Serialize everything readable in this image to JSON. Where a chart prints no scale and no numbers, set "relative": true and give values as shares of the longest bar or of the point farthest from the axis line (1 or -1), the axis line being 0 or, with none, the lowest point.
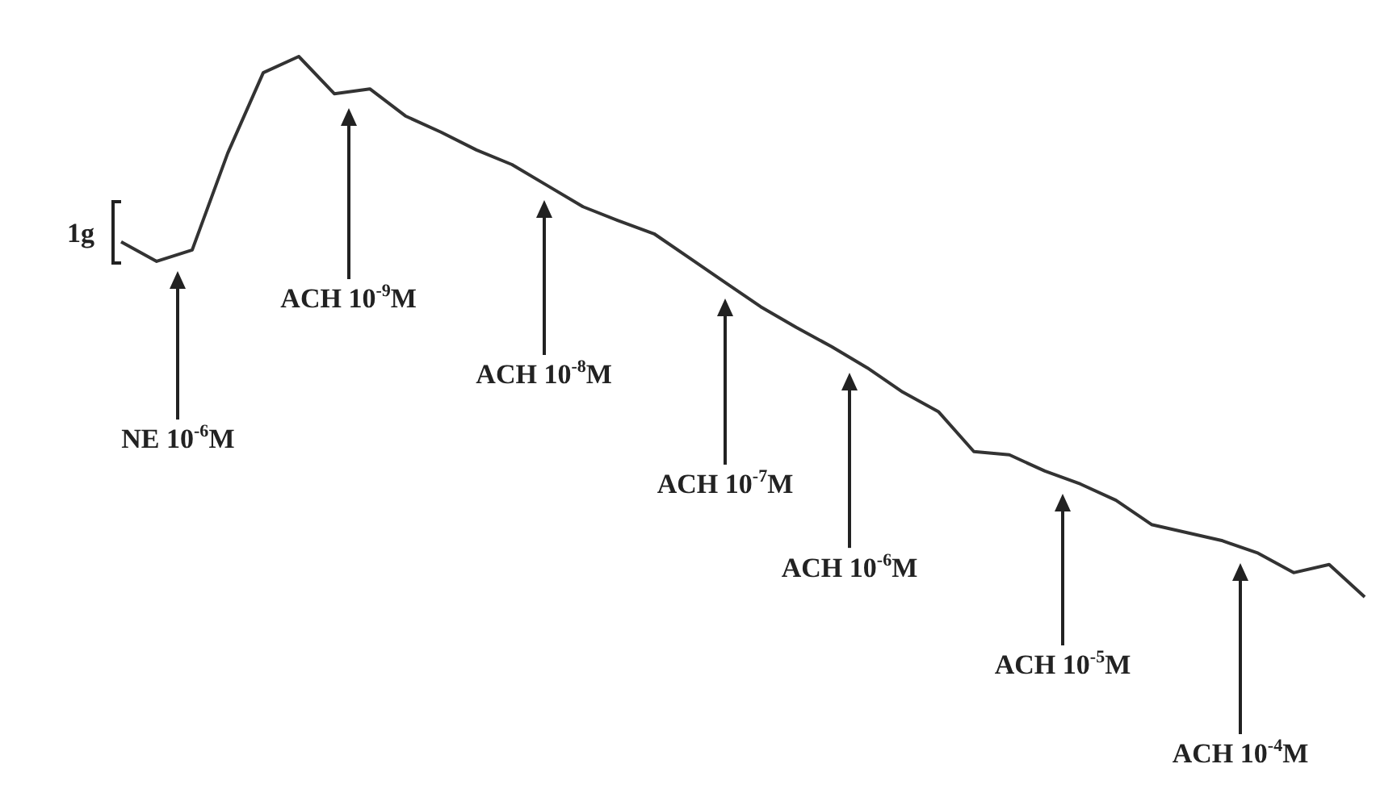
{
  "chart_data": {
    "type": "line",
    "relative": true,
    "color": "#333333",
    "marker": "none",
    "grid": false,
    "categories": [
      null,
      null,
      null,
      null,
      null,
      null,
      null,
      null,
      null,
      null,
      null,
      null,
      null,
      null,
      null,
      null,
      null,
      null,
      null,
      null,
      null,
      null,
      null,
      null,
      null,
      null,
      null,
      null,
      null,
      null,
      null,
      null,
      null,
      null,
      null,
      null
    ],
    "values": [
      0.657,
      0.621,
      0.642,
      0.821,
      0.97,
      1.0,
      0.931,
      0.94,
      0.89,
      0.86,
      0.827,
      0.8,
      0.761,
      0.722,
      0.696,
      0.672,
      0.627,
      0.582,
      0.537,
      0.499,
      0.463,
      0.424,
      0.379,
      0.343,
      0.269,
      0.263,
      0.233,
      0.209,
      0.179,
      0.134,
      0.119,
      0.104,
      0.081,
      0.045,
      0.06,
      0
    ],
    "annotations": [
      "1g",
      "NE 10$^{-6}$M",
      "ACH 10$^{-9}$M",
      "ACH 10$^{-8}$M",
      "ACH 10$^{-7}$M",
      "ACH 10$^{-6}$M",
      "ACH 10$^{-5}$M",
      "ACH 10$^{-4}$M"
    ]
  }
}
